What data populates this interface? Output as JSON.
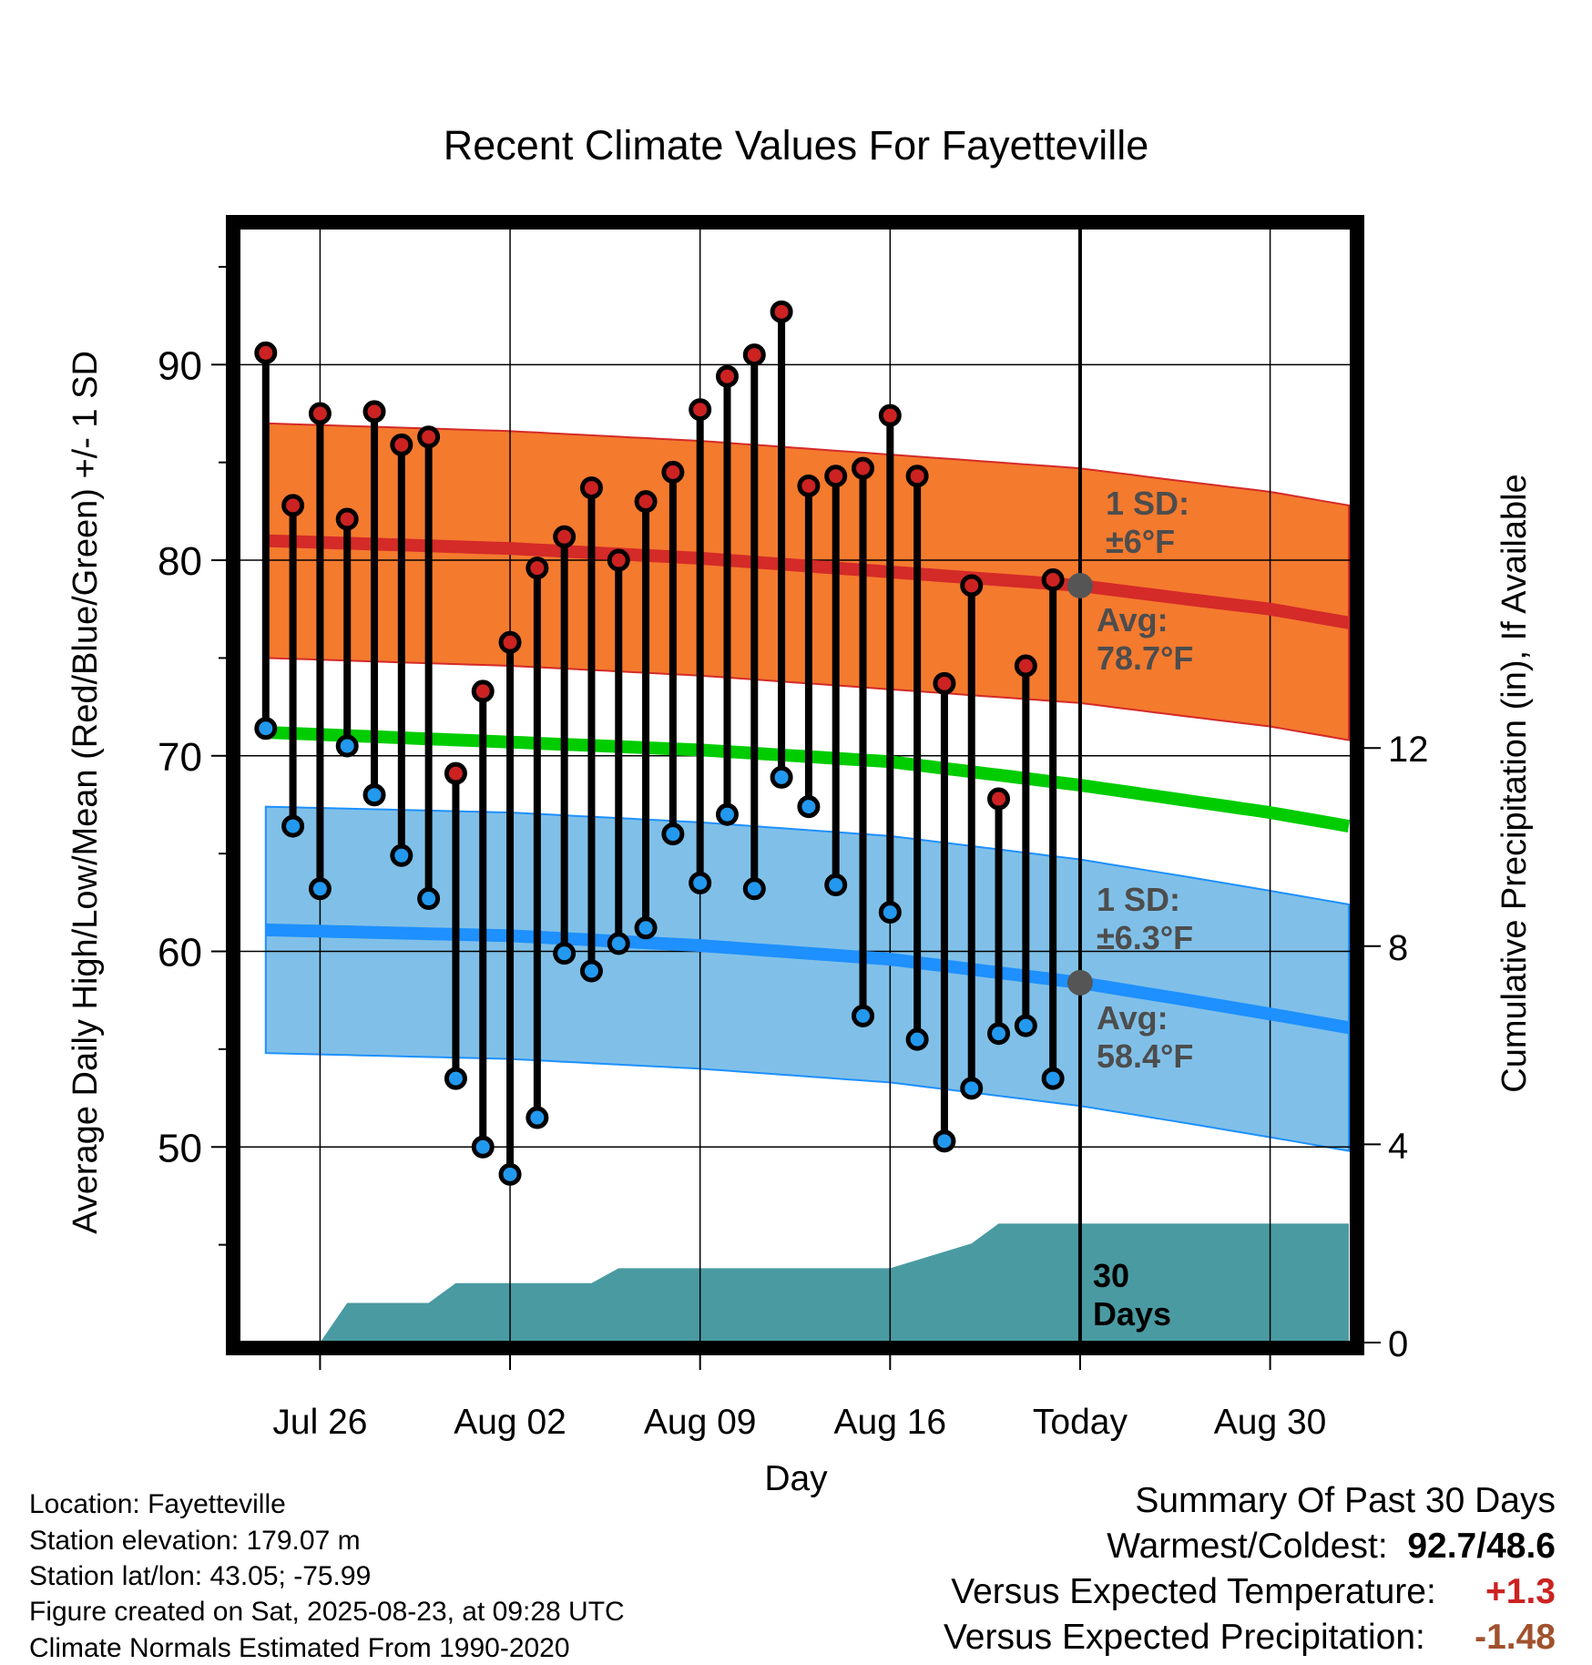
{
  "chart_data": {
    "type": "line",
    "title": "Recent Climate Values For Fayetteville",
    "xlabel": "Day",
    "ylabel": "Average Daily High/Low/Mean (Red/Blue/Green) +/- 1 SD",
    "y2label": "Cumulative Precipitation (in), If Available",
    "x_ticks": [
      "Jul 26",
      "Aug 02",
      "Aug 09",
      "Aug 16",
      "Today",
      "Aug 30"
    ],
    "x_tick_days": [
      0,
      7,
      14,
      21,
      28,
      35
    ],
    "x_range_days": [
      -3,
      38
    ],
    "ylim": [
      40,
      97
    ],
    "y_ticks": [
      50,
      60,
      70,
      80,
      90
    ],
    "y2lim": [
      0,
      22.5
    ],
    "y2_ticks": [
      0,
      4,
      8,
      12
    ],
    "grid": true,
    "today_day": 28,
    "highs": [
      90.6,
      82.8,
      87.5,
      82.1,
      87.6,
      85.9,
      86.3,
      69.1,
      73.3,
      75.8,
      79.6,
      81.2,
      83.7,
      80.0,
      83.0,
      84.5,
      87.7,
      89.4,
      90.5,
      92.7,
      83.8,
      84.3,
      84.7,
      87.4,
      84.3,
      73.7,
      78.7,
      67.8,
      74.6,
      79.0
    ],
    "lows": [
      71.4,
      66.4,
      63.2,
      70.5,
      68.0,
      64.9,
      62.7,
      53.5,
      50.0,
      48.6,
      51.5,
      59.9,
      59.0,
      60.4,
      61.2,
      66.0,
      63.5,
      67.0,
      63.2,
      68.9,
      67.4,
      63.4,
      56.7,
      62.0,
      55.5,
      50.3,
      53.0,
      55.8,
      56.2,
      53.5
    ],
    "normal_high": {
      "days": [
        -2,
        7,
        14,
        21,
        28,
        32,
        35,
        37.9
      ],
      "values": [
        81.0,
        80.6,
        80.1,
        79.4,
        78.7,
        78.0,
        77.5,
        76.8
      ]
    },
    "normal_high_sd": 6,
    "normal_mean": {
      "days": [
        -2,
        7,
        14,
        21,
        28,
        32,
        35,
        37.9
      ],
      "values": [
        71.2,
        70.7,
        70.3,
        69.7,
        68.5,
        67.7,
        67.1,
        66.4
      ]
    },
    "normal_low": {
      "days": [
        -2,
        7,
        14,
        21,
        28,
        32,
        35,
        37.9
      ],
      "values": [
        61.1,
        60.8,
        60.3,
        59.6,
        58.4,
        57.5,
        56.8,
        56.1
      ]
    },
    "normal_low_sd": 6.3,
    "precip_cumulative": {
      "days": [
        0,
        1,
        4,
        5,
        10,
        11,
        21,
        24,
        25,
        37.9
      ],
      "values": [
        0,
        0.8,
        0.8,
        1.2,
        1.2,
        1.5,
        1.5,
        2.0,
        2.4,
        2.4
      ]
    },
    "annotations": {
      "high_sd_label": [
        "1 SD:",
        "±6°F"
      ],
      "high_avg_label": [
        "Avg:",
        "78.7°F"
      ],
      "low_sd_label": [
        "1 SD:",
        "±6.3°F"
      ],
      "low_avg_label": [
        "Avg:",
        "58.4°F"
      ],
      "precip_label": [
        "30",
        "Days"
      ]
    },
    "colors": {
      "high_band": "#f47a2e",
      "high_line": "#d42a28",
      "mean_line": "#00cc00",
      "low_band": "#80c0e8",
      "low_line": "#1e90ff",
      "precip": "#4a9aa2",
      "high_dot": "#cc2222",
      "low_dot": "#2299ee",
      "today_marker": "#555555"
    }
  },
  "info": {
    "location": "Location: Fayetteville",
    "elevation": "Station elevation: 179.07 m",
    "latlon": "Station lat/lon: 43.05; -75.99",
    "created": "Figure created on Sat, 2025-08-23, at 09:28 UTC",
    "normals": "Climate Normals Estimated From 1990-2020"
  },
  "summary": {
    "title": "Summary Of Past 30 Days",
    "warmcold_label": "Warmest/Coldest:",
    "warmcold_value": "92.7/48.6",
    "temp_label": "Versus Expected Temperature:",
    "temp_value": "+1.3",
    "temp_color": "#cc2222",
    "precip_label": "Versus Expected Precipitation:",
    "precip_value": "-1.48",
    "precip_color": "#a0522d"
  }
}
